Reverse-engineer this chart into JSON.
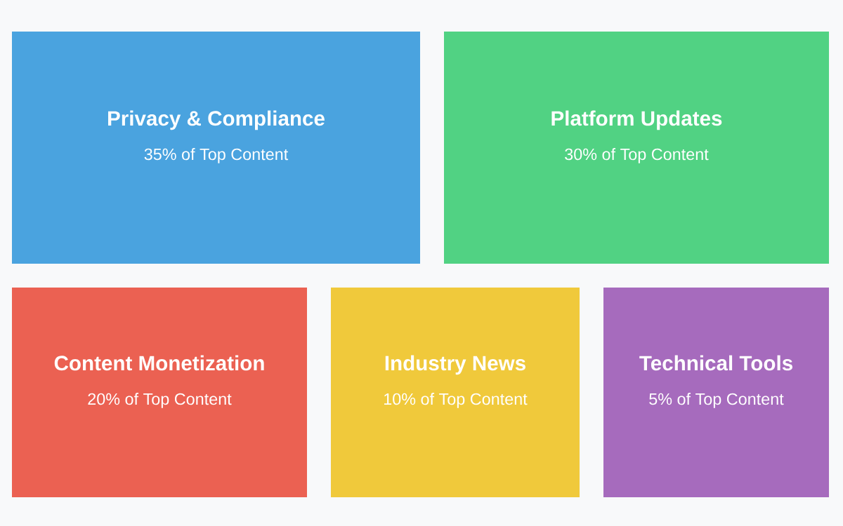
{
  "chart_data": {
    "type": "other",
    "categories": [
      "Privacy & Compliance",
      "Platform Updates",
      "Content Monetization",
      "Industry News",
      "Technical Tools"
    ],
    "values": [
      35,
      30,
      20,
      10,
      5
    ],
    "colors": [
      "#4aa3df",
      "#51d283",
      "#eb6152",
      "#f0c93b",
      "#a66bbd"
    ],
    "value_labels": [
      "35% of Top Content",
      "30% of Top Content",
      "20% of Top Content",
      "10% of Top Content",
      "5% of Top Content"
    ]
  }
}
